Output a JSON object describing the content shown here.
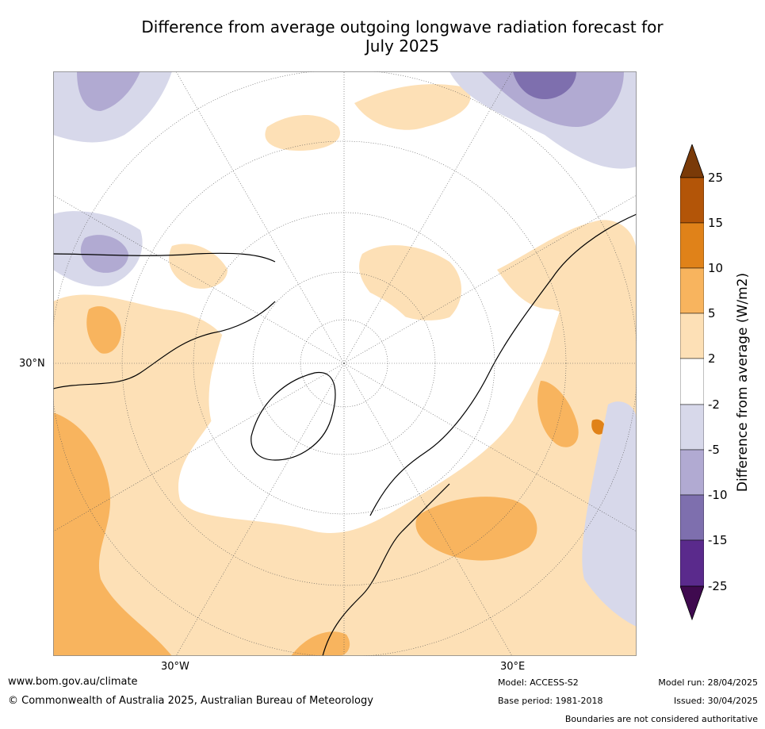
{
  "title_line1": "Difference from average outgoing longwave radiation forecast for",
  "title_line2": "July 2025",
  "map": {
    "projection": "north-polar-stereographic",
    "lat_labels": [
      {
        "text": "30°N"
      }
    ],
    "lon_labels": [
      {
        "text": "30°W"
      },
      {
        "text": "30°E"
      }
    ],
    "gridlines": "dotted",
    "field_colors": {
      "neg25": "#3f0a4f",
      "neg15": "#5a2a8c",
      "neg10": "#7e6fae",
      "neg5": "#b1aad2",
      "neg2": "#d7d8ea",
      "neutral": "#ffffff",
      "pos2": "#fde0b6",
      "pos5": "#f8b45e",
      "pos10": "#e08219",
      "pos15": "#b35508",
      "pos25": "#7a3a08"
    }
  },
  "colorbar": {
    "title": "Difference from average (W/m2)",
    "ticks": [
      "25",
      "15",
      "10",
      "5",
      "2",
      "-2",
      "-5",
      "-10",
      "-15",
      "-25"
    ],
    "colors_top_to_bottom": [
      "#7a3a08",
      "#b35508",
      "#e08219",
      "#f8b45e",
      "#fde0b6",
      "#ffffff",
      "#d7d8ea",
      "#b1aad2",
      "#7e6fae",
      "#5a2a8c",
      "#3f0a4f"
    ]
  },
  "footer": {
    "website": "www.bom.gov.au/climate",
    "copyright": "© Commonwealth of Australia 2025, Australian Bureau of Meteorology",
    "model": "Model: ACCESS-S2",
    "base_period": "Base period: 1981-2018",
    "model_run": "Model run: 28/04/2025",
    "issued": "Issued: 30/04/2025",
    "disclaimer": "Boundaries are not considered authoritative"
  }
}
